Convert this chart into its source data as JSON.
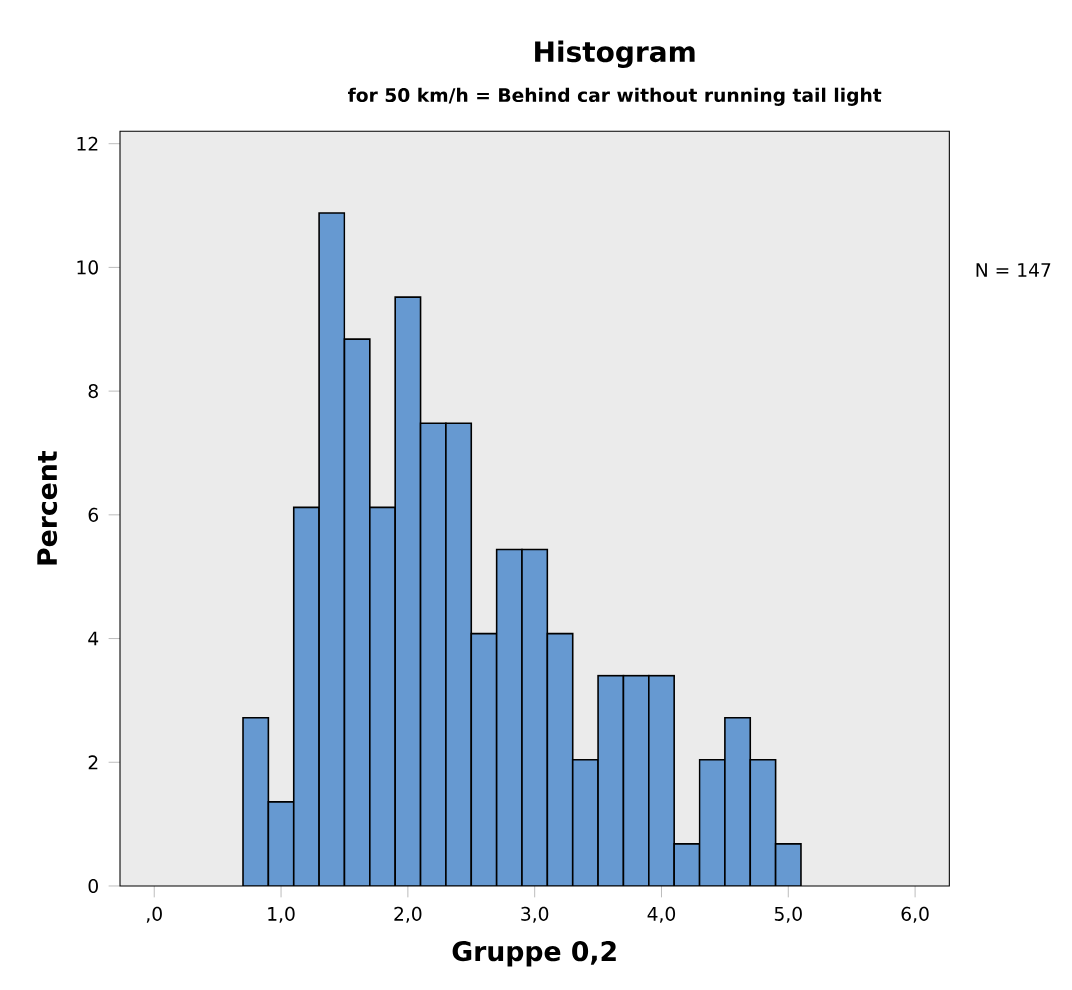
{
  "chart_data": {
    "type": "histogram",
    "title": "Histogram",
    "subtitle": "for 50 km/h = Behind car without running tail light",
    "xlabel": "Gruppe 0,2",
    "ylabel": "Percent",
    "bins": [
      0.7,
      0.9,
      1.1,
      1.3,
      1.5,
      1.7,
      1.9,
      2.1,
      2.3,
      2.5,
      2.7,
      2.9,
      3.1,
      3.3,
      3.5,
      3.7,
      3.9,
      4.1,
      4.3,
      4.5,
      4.7,
      4.9,
      5.1
    ],
    "values": [
      2.72,
      1.36,
      6.12,
      10.88,
      8.84,
      6.12,
      9.52,
      7.48,
      7.48,
      4.08,
      5.44,
      5.44,
      4.08,
      2.04,
      3.4,
      3.4,
      3.4,
      0.68,
      2.04,
      2.72,
      2.04,
      0.68
    ],
    "color": "#6699d1",
    "xlim": [
      -0.27,
      6.27
    ],
    "ylim": [
      0,
      12.2
    ],
    "xticks": [
      {
        "value": 0,
        "label": ",0"
      },
      {
        "value": 1,
        "label": "1,0"
      },
      {
        "value": 2,
        "label": "2,0"
      },
      {
        "value": 3,
        "label": "3,0"
      },
      {
        "value": 4,
        "label": "4,0"
      },
      {
        "value": 5,
        "label": "5,0"
      },
      {
        "value": 6,
        "label": "6,0"
      }
    ],
    "yticks": [
      0,
      2,
      4,
      6,
      8,
      10,
      12
    ],
    "annotations": [
      "N = 147"
    ]
  }
}
